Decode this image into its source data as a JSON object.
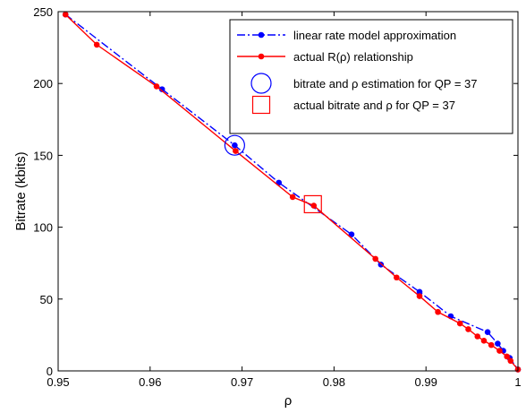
{
  "chart_data": {
    "type": "line",
    "xlabel": "ρ",
    "ylabel": "Bitrate (kbits)",
    "xlim": [
      0.95,
      1.0
    ],
    "ylim": [
      0,
      250
    ],
    "xticks": [
      "0.95",
      "0.96",
      "0.97",
      "0.98",
      "0.99",
      "1"
    ],
    "yticks": [
      "0",
      "50",
      "100",
      "150",
      "200",
      "250"
    ],
    "grid": false,
    "legend_position": "top-right",
    "series": [
      {
        "name": "linear rate model approximation",
        "color": "#0000ff",
        "line_style": "dash-dot",
        "marker": "dot",
        "x": [
          0.9508,
          0.9613,
          0.9692,
          0.974,
          0.9819,
          0.9851,
          0.9893,
          0.9927,
          0.9967,
          0.9978,
          0.9984,
          0.9991,
          1.0
        ],
        "y": [
          248,
          196,
          157,
          131,
          95,
          74,
          55,
          38,
          27,
          19,
          14,
          9,
          1
        ]
      },
      {
        "name": "actual R(ρ) relationship",
        "color": "#ff0000",
        "line_style": "solid",
        "marker": "dot",
        "x": [
          0.9508,
          0.9542,
          0.9607,
          0.9693,
          0.9755,
          0.9778,
          0.9845,
          0.9868,
          0.9893,
          0.9913,
          0.9937,
          0.9946,
          0.9956,
          0.9963,
          0.9971,
          0.998,
          0.9988,
          0.9992,
          1.0
        ],
        "y": [
          248,
          227,
          198,
          153,
          121,
          115,
          78,
          65,
          52,
          41,
          33,
          29,
          24,
          21,
          18,
          14,
          10,
          7,
          1
        ]
      },
      {
        "name": "bitrate and ρ estimation for QP = 37",
        "color": "#0000ff",
        "marker": "circle",
        "x": [
          0.9692
        ],
        "y": [
          157
        ]
      },
      {
        "name": "actual bitrate and ρ for QP = 37",
        "color": "#ff0000",
        "marker": "square",
        "x": [
          0.9777
        ],
        "y": [
          116
        ]
      }
    ]
  }
}
